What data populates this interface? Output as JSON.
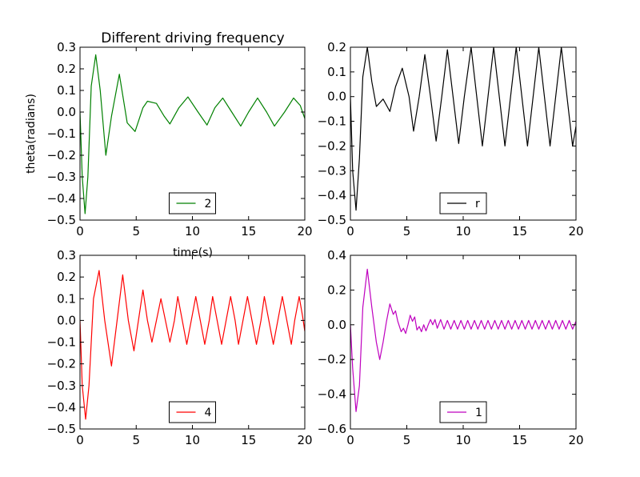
{
  "figure": {
    "title": "Different driving frequency",
    "xlabel": "time(s)",
    "ylabel": "theta(radians)"
  },
  "chart_data": [
    {
      "type": "line",
      "panel": "top-left",
      "xlim": [
        0,
        20
      ],
      "ylim": [
        -0.5,
        0.3
      ],
      "xticks": [
        0,
        5,
        10,
        15,
        20
      ],
      "yticks": [
        -0.5,
        -0.4,
        -0.3,
        -0.2,
        -0.1,
        0.0,
        0.1,
        0.2,
        0.3
      ],
      "xtick_labels": [
        "0",
        "5",
        "10",
        "15",
        "20"
      ],
      "ytick_labels": [
        "−0.5",
        "−0.4",
        "−0.3",
        "−0.2",
        "−0.1",
        "0.0",
        "0.1",
        "0.2",
        "0.3"
      ],
      "legend_position": "lower center",
      "series": [
        {
          "name": "2",
          "color": "#008000",
          "points": [
            [
              0,
              0.0
            ],
            [
              0.2,
              -0.3
            ],
            [
              0.45,
              -0.47
            ],
            [
              0.7,
              -0.3
            ],
            [
              1.0,
              0.12
            ],
            [
              1.4,
              0.265
            ],
            [
              1.8,
              0.1
            ],
            [
              2.3,
              -0.2
            ],
            [
              2.8,
              -0.02
            ],
            [
              3.5,
              0.175
            ],
            [
              4.2,
              -0.05
            ],
            [
              4.9,
              -0.09
            ],
            [
              5.6,
              0.02
            ],
            [
              6.0,
              0.05
            ],
            [
              6.8,
              0.04
            ],
            [
              7.5,
              -0.02
            ],
            [
              8.0,
              -0.055
            ],
            [
              8.8,
              0.02
            ],
            [
              9.6,
              0.07
            ],
            [
              10.5,
              0.0
            ],
            [
              11.3,
              -0.06
            ],
            [
              12.0,
              0.02
            ],
            [
              12.7,
              0.065
            ],
            [
              13.5,
              0.0
            ],
            [
              14.3,
              -0.065
            ],
            [
              15.0,
              0.0
            ],
            [
              15.8,
              0.065
            ],
            [
              16.6,
              0.0
            ],
            [
              17.3,
              -0.065
            ],
            [
              18.2,
              0.0
            ],
            [
              19.0,
              0.065
            ],
            [
              19.6,
              0.03
            ],
            [
              20.0,
              -0.03
            ]
          ]
        }
      ]
    },
    {
      "type": "line",
      "panel": "top-right",
      "xlim": [
        0,
        20
      ],
      "ylim": [
        -0.5,
        0.2
      ],
      "xticks": [
        0,
        5,
        10,
        15,
        20
      ],
      "yticks": [
        -0.5,
        -0.4,
        -0.3,
        -0.2,
        -0.1,
        0.0,
        0.1,
        0.2
      ],
      "xtick_labels": [
        "0",
        "5",
        "10",
        "15",
        "20"
      ],
      "ytick_labels": [
        "−0.5",
        "−0.4",
        "−0.3",
        "−0.2",
        "−0.1",
        "0.0",
        "0.1",
        "0.2"
      ],
      "legend_position": "lower center",
      "series": [
        {
          "name": "r",
          "color": "#000000",
          "points": [
            [
              0,
              0.0
            ],
            [
              0.2,
              -0.3
            ],
            [
              0.5,
              -0.46
            ],
            [
              0.8,
              -0.25
            ],
            [
              1.1,
              0.08
            ],
            [
              1.5,
              0.2
            ],
            [
              1.9,
              0.06
            ],
            [
              2.3,
              -0.04
            ],
            [
              2.9,
              -0.01
            ],
            [
              3.5,
              -0.06
            ],
            [
              4.0,
              0.04
            ],
            [
              4.6,
              0.115
            ],
            [
              5.2,
              0.0
            ],
            [
              5.6,
              -0.14
            ],
            [
              6.1,
              0.0
            ],
            [
              6.6,
              0.17
            ],
            [
              7.1,
              0.0
            ],
            [
              7.6,
              -0.18
            ],
            [
              8.1,
              0.0
            ],
            [
              8.6,
              0.19
            ],
            [
              9.1,
              0.0
            ],
            [
              9.6,
              -0.19
            ],
            [
              10.1,
              0.0
            ],
            [
              10.7,
              0.2
            ],
            [
              11.2,
              0.0
            ],
            [
              11.7,
              -0.2
            ],
            [
              12.2,
              0.0
            ],
            [
              12.7,
              0.2
            ],
            [
              13.2,
              0.0
            ],
            [
              13.7,
              -0.2
            ],
            [
              14.2,
              0.0
            ],
            [
              14.7,
              0.2
            ],
            [
              15.2,
              0.0
            ],
            [
              15.7,
              -0.2
            ],
            [
              16.2,
              0.0
            ],
            [
              16.7,
              0.2
            ],
            [
              17.2,
              0.0
            ],
            [
              17.7,
              -0.2
            ],
            [
              18.2,
              0.0
            ],
            [
              18.7,
              0.2
            ],
            [
              19.2,
              0.0
            ],
            [
              19.7,
              -0.2
            ],
            [
              20.0,
              -0.12
            ]
          ]
        }
      ]
    },
    {
      "type": "line",
      "panel": "bottom-left",
      "xlim": [
        0,
        20
      ],
      "ylim": [
        -0.5,
        0.3
      ],
      "xticks": [
        0,
        5,
        10,
        15,
        20
      ],
      "yticks": [
        -0.5,
        -0.4,
        -0.3,
        -0.2,
        -0.1,
        0.0,
        0.1,
        0.2,
        0.3
      ],
      "xtick_labels": [
        "0",
        "5",
        "10",
        "15",
        "20"
      ],
      "ytick_labels": [
        "−0.5",
        "−0.4",
        "−0.3",
        "−0.2",
        "−0.1",
        "0.0",
        "0.1",
        "0.2",
        "0.3"
      ],
      "legend_position": "lower center",
      "series": [
        {
          "name": "4",
          "color": "#ff0000",
          "points": [
            [
              0,
              0.0
            ],
            [
              0.2,
              -0.3
            ],
            [
              0.5,
              -0.455
            ],
            [
              0.8,
              -0.3
            ],
            [
              1.2,
              0.1
            ],
            [
              1.7,
              0.23
            ],
            [
              2.2,
              0.0
            ],
            [
              2.8,
              -0.21
            ],
            [
              3.3,
              0.0
            ],
            [
              3.8,
              0.21
            ],
            [
              4.3,
              0.0
            ],
            [
              4.8,
              -0.14
            ],
            [
              5.2,
              0.0
            ],
            [
              5.6,
              0.14
            ],
            [
              6.0,
              0.0
            ],
            [
              6.4,
              -0.1
            ],
            [
              6.8,
              0.0
            ],
            [
              7.2,
              0.1
            ],
            [
              7.6,
              0.0
            ],
            [
              8.0,
              -0.1
            ],
            [
              8.4,
              0.0
            ],
            [
              8.7,
              0.11
            ],
            [
              9.1,
              0.0
            ],
            [
              9.5,
              -0.11
            ],
            [
              9.9,
              0.0
            ],
            [
              10.3,
              0.11
            ],
            [
              10.7,
              0.0
            ],
            [
              11.1,
              -0.11
            ],
            [
              11.5,
              0.0
            ],
            [
              11.8,
              0.11
            ],
            [
              12.2,
              0.0
            ],
            [
              12.6,
              -0.11
            ],
            [
              13.0,
              0.0
            ],
            [
              13.4,
              0.11
            ],
            [
              13.8,
              0.0
            ],
            [
              14.1,
              -0.11
            ],
            [
              14.5,
              0.0
            ],
            [
              14.9,
              0.11
            ],
            [
              15.3,
              0.0
            ],
            [
              15.7,
              -0.11
            ],
            [
              16.1,
              0.0
            ],
            [
              16.4,
              0.11
            ],
            [
              16.8,
              0.0
            ],
            [
              17.2,
              -0.11
            ],
            [
              17.6,
              0.0
            ],
            [
              18.0,
              0.11
            ],
            [
              18.4,
              0.0
            ],
            [
              18.8,
              -0.11
            ],
            [
              19.1,
              0.0
            ],
            [
              19.5,
              0.11
            ],
            [
              19.8,
              0.02
            ],
            [
              20.0,
              -0.05
            ]
          ]
        }
      ]
    },
    {
      "type": "line",
      "panel": "bottom-right",
      "xlim": [
        0,
        20
      ],
      "ylim": [
        -0.6,
        0.4
      ],
      "xticks": [
        0,
        5,
        10,
        15,
        20
      ],
      "yticks": [
        -0.6,
        -0.4,
        -0.2,
        0.0,
        0.2,
        0.4
      ],
      "xtick_labels": [
        "0",
        "5",
        "10",
        "15",
        "20"
      ],
      "ytick_labels": [
        "−0.6",
        "−0.4",
        "−0.2",
        "0.0",
        "0.2",
        "0.4"
      ],
      "legend_position": "lower center",
      "series": [
        {
          "name": "1",
          "color": "#bf00bf",
          "points": [
            [
              0,
              0.0
            ],
            [
              0.2,
              -0.25
            ],
            [
              0.5,
              -0.5
            ],
            [
              0.8,
              -0.35
            ],
            [
              1.1,
              0.1
            ],
            [
              1.5,
              0.32
            ],
            [
              1.9,
              0.1
            ],
            [
              2.3,
              -0.1
            ],
            [
              2.6,
              -0.2
            ],
            [
              2.9,
              -0.1
            ],
            [
              3.2,
              0.02
            ],
            [
              3.5,
              0.12
            ],
            [
              3.8,
              0.06
            ],
            [
              4.0,
              0.08
            ],
            [
              4.2,
              0.02
            ],
            [
              4.5,
              -0.04
            ],
            [
              4.7,
              -0.02
            ],
            [
              4.9,
              -0.05
            ],
            [
              5.1,
              0.0
            ],
            [
              5.3,
              0.055
            ],
            [
              5.5,
              0.02
            ],
            [
              5.7,
              0.045
            ],
            [
              5.9,
              -0.03
            ],
            [
              6.1,
              -0.01
            ],
            [
              6.3,
              -0.04
            ],
            [
              6.5,
              0.0
            ],
            [
              6.7,
              -0.035
            ],
            [
              6.9,
              0.0
            ],
            [
              7.1,
              0.03
            ],
            [
              7.3,
              0.0
            ],
            [
              7.5,
              0.03
            ],
            [
              7.7,
              -0.02
            ],
            [
              8.0,
              0.03
            ],
            [
              8.3,
              -0.025
            ],
            [
              8.6,
              0.025
            ],
            [
              8.9,
              -0.025
            ],
            [
              9.2,
              0.025
            ],
            [
              9.5,
              -0.025
            ],
            [
              9.8,
              0.025
            ],
            [
              10.1,
              -0.025
            ],
            [
              10.4,
              0.025
            ],
            [
              10.7,
              -0.025
            ],
            [
              11.0,
              0.025
            ],
            [
              11.3,
              -0.025
            ],
            [
              11.6,
              0.025
            ],
            [
              11.9,
              -0.025
            ],
            [
              12.2,
              0.025
            ],
            [
              12.5,
              -0.025
            ],
            [
              12.8,
              0.025
            ],
            [
              13.1,
              -0.025
            ],
            [
              13.4,
              0.025
            ],
            [
              13.7,
              -0.025
            ],
            [
              14.0,
              0.025
            ],
            [
              14.3,
              -0.025
            ],
            [
              14.6,
              0.025
            ],
            [
              14.9,
              -0.025
            ],
            [
              15.2,
              0.025
            ],
            [
              15.5,
              -0.025
            ],
            [
              15.8,
              0.025
            ],
            [
              16.1,
              -0.025
            ],
            [
              16.4,
              0.025
            ],
            [
              16.7,
              -0.025
            ],
            [
              17.0,
              0.025
            ],
            [
              17.3,
              -0.025
            ],
            [
              17.6,
              0.025
            ],
            [
              17.9,
              -0.025
            ],
            [
              18.2,
              0.025
            ],
            [
              18.5,
              -0.025
            ],
            [
              18.8,
              0.025
            ],
            [
              19.1,
              -0.025
            ],
            [
              19.4,
              0.025
            ],
            [
              19.7,
              -0.025
            ],
            [
              20.0,
              0.02
            ]
          ]
        }
      ]
    }
  ]
}
